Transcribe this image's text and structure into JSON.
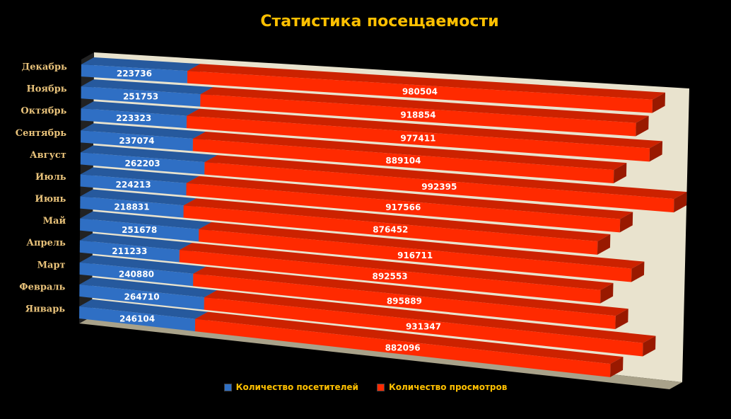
{
  "chart_data": {
    "type": "bar",
    "orientation": "horizontal",
    "stacked": true,
    "three_d": true,
    "title": "Статистика посещаемости",
    "categories": [
      "Декабрь",
      "Ноябрь",
      "Октябрь",
      "Сентябрь",
      "Август",
      "Июль",
      "Июнь",
      "Май",
      "Апрель",
      "Март",
      "Февраль",
      "Январь"
    ],
    "series": [
      {
        "name": "Количество посетителей",
        "color": "#2F6FC4",
        "values": [
          223736,
          251753,
          223323,
          237074,
          262203,
          224213,
          218831,
          251678,
          211233,
          240880,
          264710,
          246104
        ]
      },
      {
        "name": "Количество просмотров",
        "color": "#FF2A00",
        "values": [
          980504,
          918854,
          977411,
          889104,
          992395,
          917566,
          876452,
          916711,
          892553,
          895889,
          931347,
          882096
        ]
      }
    ],
    "legend_position": "bottom",
    "colors": {
      "background": "#000000",
      "title": "#FFC000",
      "category_labels": "#E8C27A",
      "legend_text": "#FFC000",
      "data_labels": "#FFFFFF",
      "wall": "#E9E3CE",
      "floor": "#A9A28A"
    }
  }
}
